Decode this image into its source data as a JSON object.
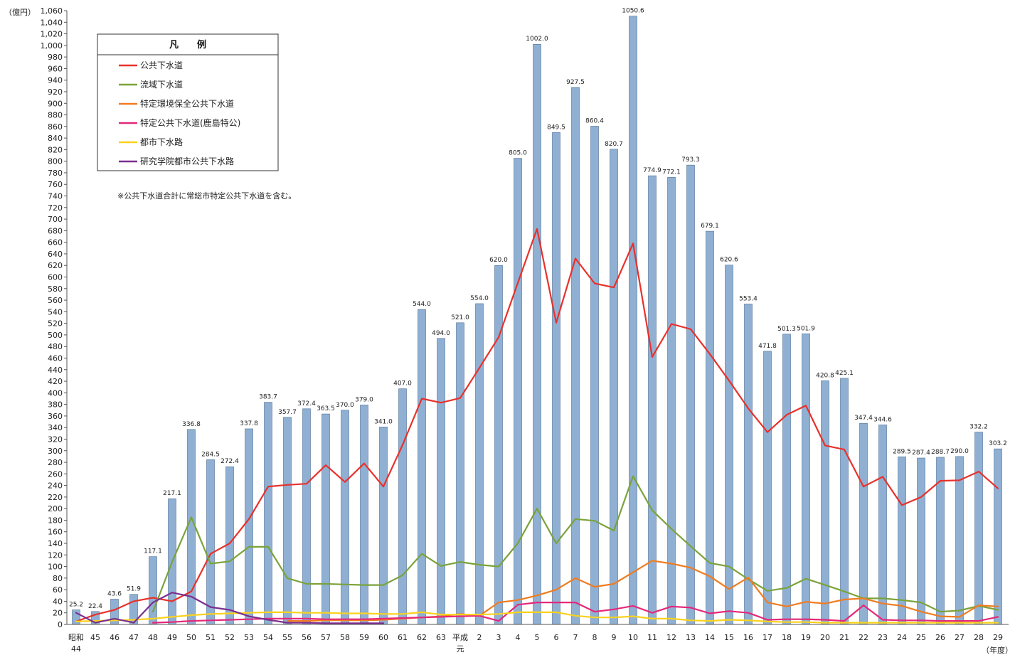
{
  "chart_data": {
    "type": "bar",
    "y_unit_label": "（億円）",
    "x_unit_label": "（年度）",
    "ylim": [
      0,
      1060
    ],
    "y_tick_step": 20,
    "grid": false,
    "legend_placement": "top-left",
    "legend_title": "凡　　例",
    "note": "※公共下水道合計に常総市特定公共下水道を含む。",
    "categories": [
      {
        "top": "昭和",
        "bottom": "44"
      },
      {
        "top": "45"
      },
      {
        "top": "46"
      },
      {
        "top": "47"
      },
      {
        "top": "48"
      },
      {
        "top": "49"
      },
      {
        "top": "50"
      },
      {
        "top": "51"
      },
      {
        "top": "52"
      },
      {
        "top": "53"
      },
      {
        "top": "54"
      },
      {
        "top": "55"
      },
      {
        "top": "56"
      },
      {
        "top": "57"
      },
      {
        "top": "58"
      },
      {
        "top": "59"
      },
      {
        "top": "60"
      },
      {
        "top": "61"
      },
      {
        "top": "62"
      },
      {
        "top": "63"
      },
      {
        "top": "平成",
        "bottom": "元"
      },
      {
        "top": "2"
      },
      {
        "top": "3"
      },
      {
        "top": "4"
      },
      {
        "top": "5"
      },
      {
        "top": "6"
      },
      {
        "top": "7"
      },
      {
        "top": "8"
      },
      {
        "top": "9"
      },
      {
        "top": "10"
      },
      {
        "top": "11"
      },
      {
        "top": "12"
      },
      {
        "top": "13"
      },
      {
        "top": "14"
      },
      {
        "top": "15"
      },
      {
        "top": "16"
      },
      {
        "top": "17"
      },
      {
        "top": "18"
      },
      {
        "top": "19"
      },
      {
        "top": "20"
      },
      {
        "top": "21"
      },
      {
        "top": "22"
      },
      {
        "top": "23"
      },
      {
        "top": "24"
      },
      {
        "top": "25"
      },
      {
        "top": "26"
      },
      {
        "top": "27"
      },
      {
        "top": "28"
      },
      {
        "top": "29"
      }
    ],
    "bar_series": {
      "color": "#8fb0d3",
      "values": [
        25.2,
        22.4,
        43.6,
        51.9,
        117.1,
        217.1,
        336.8,
        284.5,
        272.4,
        337.8,
        383.7,
        357.7,
        372.4,
        363.5,
        370.0,
        379.0,
        341.0,
        407.0,
        544.0,
        494.0,
        521.0,
        554.0,
        620.0,
        805.0,
        1002.0,
        849.5,
        927.5,
        860.4,
        820.7,
        1050.6,
        774.9,
        772.1,
        793.3,
        679.1,
        620.6,
        553.4,
        471.8,
        501.3,
        501.9,
        420.8,
        425.1,
        347.4,
        344.6,
        289.5,
        287.4,
        288.7,
        290.0,
        332.2,
        303.2
      ],
      "labels": [
        "25.2",
        "22.4",
        "43.6",
        "51.9",
        "117.1",
        "217.1",
        "336.8",
        "284.5",
        "272.4",
        "337.8",
        "383.7",
        "357.7",
        "372.4",
        "363.5",
        "370.0",
        "379.0",
        "341.0",
        "407.0",
        "544.0",
        "494.0",
        "521.0",
        "554.0",
        "620.0",
        "805.0",
        "1002.0",
        "849.5",
        "927.5",
        "860.4",
        "820.7",
        "1050.6",
        "774.9",
        "772.1",
        "793.3",
        "679.1",
        "620.6",
        "553.4",
        "471.8",
        "501.3",
        "501.9",
        "420.8",
        "425.1",
        "347.4",
        "344.6",
        "289.5",
        "287.4",
        "288.7",
        "290.0",
        "332.2",
        "303.2"
      ]
    },
    "series": [
      {
        "name": "公共下水道",
        "color": "#e8312b",
        "values": [
          5,
          17,
          25,
          40,
          46,
          40,
          57,
          122,
          140,
          182,
          238,
          241,
          243,
          275,
          246,
          278,
          238,
          310,
          390,
          383,
          391,
          443,
          496,
          590,
          683,
          521,
          632,
          589,
          582,
          658,
          462,
          519,
          510,
          467,
          421,
          373,
          332,
          362,
          378,
          309,
          302,
          238,
          255,
          206,
          220,
          248,
          249,
          264,
          235
        ]
      },
      {
        "name": "流域下水道",
        "color": "#7aa33a",
        "values": [
          null,
          null,
          null,
          null,
          22,
          108,
          185,
          105,
          109,
          134,
          134,
          80,
          70,
          70,
          69,
          68,
          68,
          85,
          122,
          101,
          108,
          103,
          100,
          140,
          200,
          140,
          182,
          179,
          162,
          256,
          197,
          165,
          135,
          106,
          100,
          78,
          58,
          63,
          79,
          68,
          57,
          45,
          45,
          42,
          38,
          22,
          24,
          32,
          25
        ]
      },
      {
        "name": "特定環境保全公共下水道",
        "color": "#f07c20",
        "values": [
          null,
          null,
          null,
          null,
          null,
          null,
          null,
          null,
          null,
          null,
          null,
          6,
          6,
          7,
          7,
          7,
          8,
          10,
          12,
          14,
          18,
          15,
          38,
          42,
          50,
          60,
          80,
          65,
          70,
          90,
          110,
          105,
          98,
          83,
          61,
          81,
          38,
          31,
          39,
          36,
          43,
          45,
          36,
          32,
          22,
          14,
          13,
          33,
          31
        ]
      },
      {
        "name": "特定公共下水道(鹿島特公)",
        "color": "#e4287a",
        "values": [
          null,
          null,
          null,
          null,
          3,
          4,
          6,
          7,
          8,
          9,
          10,
          10,
          10,
          9,
          9,
          9,
          10,
          11,
          12,
          13,
          14,
          15,
          6,
          34,
          38,
          38,
          38,
          22,
          26,
          32,
          20,
          31,
          29,
          19,
          23,
          20,
          8,
          9,
          9,
          8,
          6,
          33,
          8,
          7,
          7,
          6,
          6,
          6,
          13
        ]
      },
      {
        "name": "都市下水路",
        "color": "#f9d21c",
        "values": [
          5,
          6,
          7,
          8,
          10,
          13,
          16,
          18,
          19,
          20,
          21,
          21,
          20,
          20,
          19,
          19,
          18,
          18,
          21,
          17,
          17,
          17,
          18,
          21,
          21,
          21,
          15,
          12,
          12,
          14,
          10,
          10,
          7,
          6,
          8,
          7,
          5,
          4,
          4,
          3,
          3,
          3,
          3,
          3,
          3,
          3,
          3,
          3,
          3
        ]
      },
      {
        "name": "研究学院都市公共下水路",
        "color": "#7b2f8e",
        "values": [
          20,
          3,
          10,
          3,
          38,
          55,
          48,
          30,
          25,
          14,
          8,
          3,
          3,
          2,
          2,
          2,
          2,
          null,
          null,
          null,
          null,
          null,
          null,
          null,
          null,
          null,
          null,
          null,
          null,
          null,
          null,
          null,
          null,
          null,
          null,
          null,
          null,
          null,
          null,
          null,
          null,
          null,
          null,
          null,
          null,
          null,
          null,
          null,
          null
        ]
      }
    ]
  }
}
